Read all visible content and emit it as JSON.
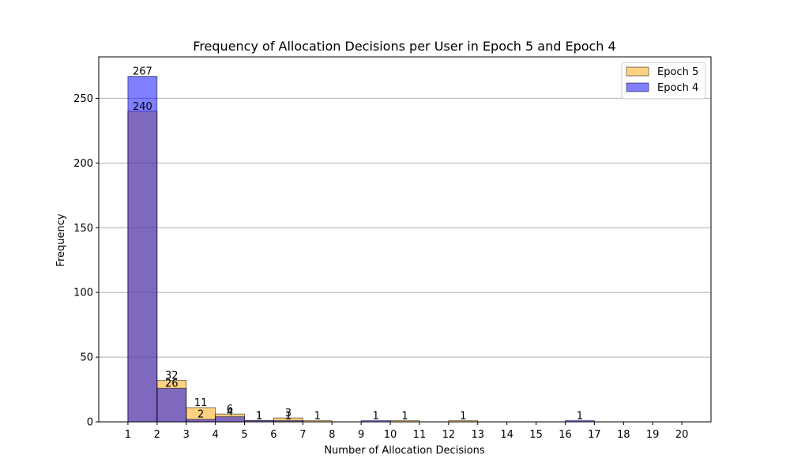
{
  "chart_data": {
    "type": "bar",
    "title": "Frequency of Allocation Decisions per User in Epoch 5 and Epoch 4",
    "xlabel": "Number of Allocation Decisions",
    "ylabel": "Frequency",
    "xlim": [
      0.0,
      21.0
    ],
    "ylim": [
      0,
      282
    ],
    "x_ticks": [
      1,
      2,
      3,
      4,
      5,
      6,
      7,
      8,
      9,
      10,
      11,
      12,
      13,
      14,
      15,
      16,
      17,
      18,
      19,
      20
    ],
    "y_ticks": [
      0,
      50,
      100,
      150,
      200,
      250
    ],
    "grid": "y",
    "legend_position": "top-right",
    "bin_edges": [
      1,
      2,
      3,
      4,
      5,
      6,
      7,
      8,
      9,
      10,
      11,
      12,
      13,
      14,
      15,
      16,
      17,
      18,
      19,
      20
    ],
    "series": [
      {
        "name": "Epoch 5",
        "color": "#FFA500",
        "alpha": 0.5,
        "values": [
          240,
          32,
          11,
          6,
          1,
          3,
          1,
          0,
          0,
          1,
          0,
          1,
          0,
          0,
          0,
          0,
          0,
          0,
          0
        ]
      },
      {
        "name": "Epoch 4",
        "color": "#0000FF",
        "alpha": 0.5,
        "values": [
          267,
          26,
          2,
          4,
          1,
          1,
          0,
          0,
          1,
          0,
          0,
          0,
          0,
          0,
          0,
          1,
          0,
          0,
          0
        ]
      }
    ]
  }
}
